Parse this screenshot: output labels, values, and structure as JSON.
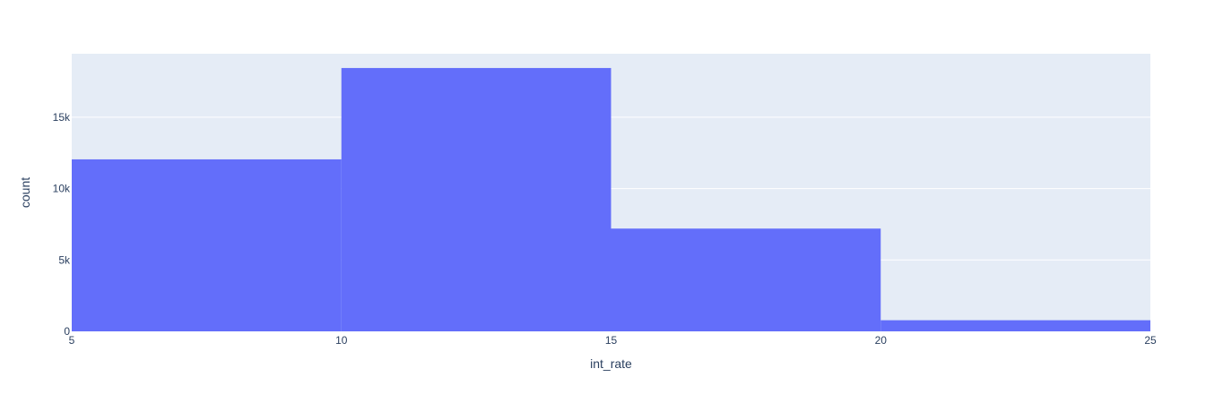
{
  "chart_data": {
    "type": "bar",
    "subtype": "histogram",
    "bins": [
      {
        "x0": 5,
        "x1": 10,
        "count": 12050
      },
      {
        "x0": 10,
        "x1": 15,
        "count": 18450
      },
      {
        "x0": 15,
        "x1": 20,
        "count": 7200
      },
      {
        "x0": 20,
        "x1": 25,
        "count": 780
      }
    ],
    "xlabel": "int_rate",
    "ylabel": "count",
    "xlim": [
      5,
      25
    ],
    "ylim": [
      0,
      19450
    ],
    "xticks": [
      5,
      10,
      15,
      20,
      25
    ],
    "xtick_labels": [
      "5",
      "10",
      "15",
      "20",
      "25"
    ],
    "yticks": [
      0,
      5000,
      10000,
      15000
    ],
    "ytick_labels": [
      "0",
      "5k",
      "10k",
      "15k"
    ],
    "grid": "horizontal",
    "legend": "none",
    "colors": {
      "bar": "#636efa",
      "plot_background": "#e5ecf6",
      "gridline": "#ffffff",
      "text": "#2a3f5f"
    }
  }
}
